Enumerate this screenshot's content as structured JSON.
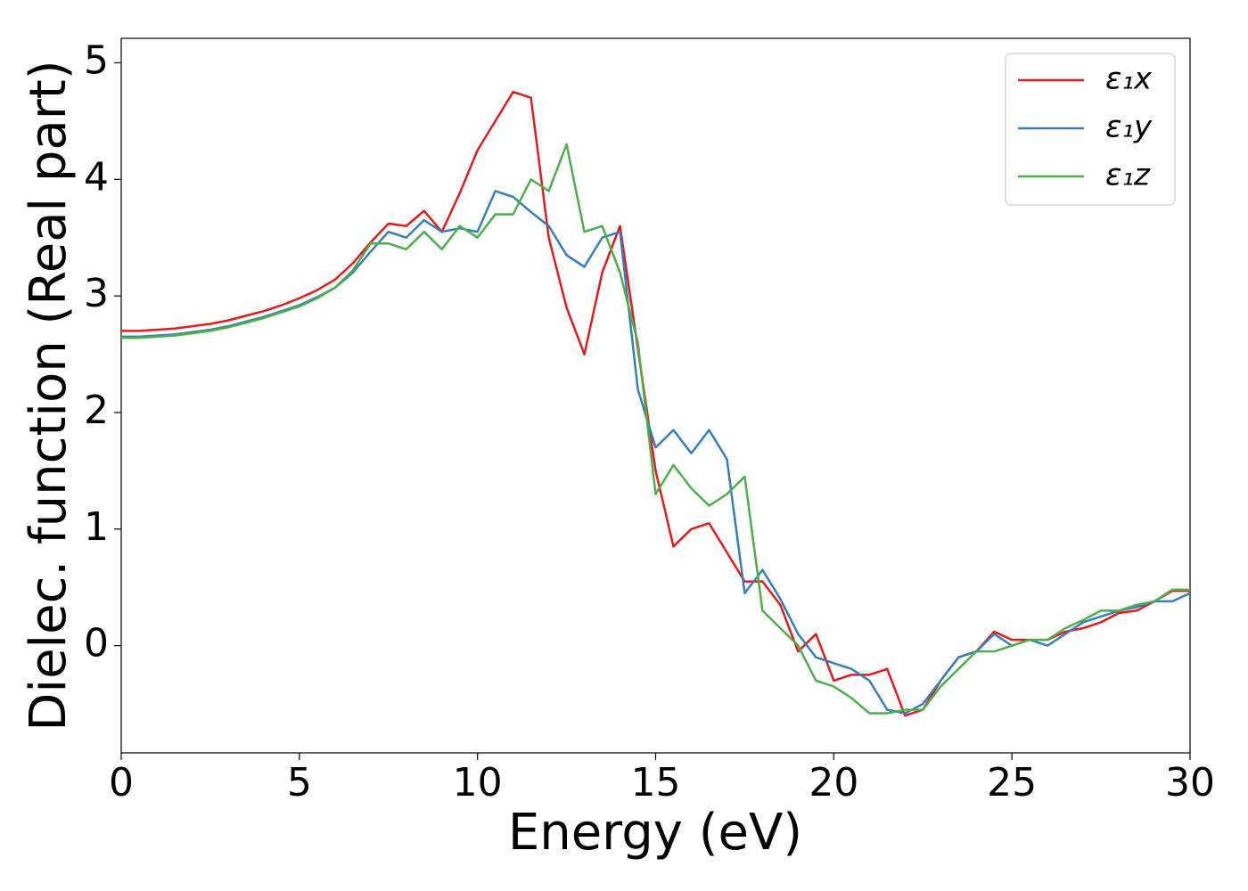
{
  "chart_data": {
    "type": "line",
    "xlabel": "Energy (eV)",
    "ylabel": "Dielec. function (Real part)",
    "x": [
      0,
      0.5,
      1,
      1.5,
      2,
      2.5,
      3,
      3.5,
      4,
      4.5,
      5,
      5.5,
      6,
      6.5,
      7,
      7.5,
      8,
      8.5,
      9,
      9.5,
      10,
      10.5,
      11,
      11.5,
      12,
      12.5,
      13,
      13.5,
      14,
      14.5,
      15,
      15.5,
      16,
      16.5,
      17,
      17.5,
      18,
      18.5,
      19,
      19.5,
      20,
      20.5,
      21,
      21.5,
      22,
      22.5,
      23,
      23.5,
      24,
      24.5,
      25,
      25.5,
      26,
      26.5,
      27,
      27.5,
      28,
      28.5,
      29,
      29.5,
      30
    ],
    "series": [
      {
        "name": "ε₁x",
        "color": "#e41a1c",
        "values": [
          2.7,
          2.7,
          2.71,
          2.72,
          2.74,
          2.76,
          2.79,
          2.83,
          2.87,
          2.92,
          2.98,
          3.05,
          3.14,
          3.28,
          3.46,
          3.62,
          3.6,
          3.73,
          3.55,
          3.88,
          4.25,
          4.5,
          4.75,
          4.7,
          3.5,
          2.9,
          2.5,
          3.2,
          3.6,
          2.55,
          1.5,
          0.85,
          1.0,
          1.05,
          0.8,
          0.55,
          0.55,
          0.35,
          -0.05,
          0.1,
          -0.3,
          -0.25,
          -0.25,
          -0.2,
          -0.6,
          -0.55,
          -0.3,
          -0.1,
          -0.05,
          0.12,
          0.05,
          0.05,
          0.05,
          0.12,
          0.15,
          0.2,
          0.28,
          0.3,
          0.38,
          0.47,
          0.47
        ]
      },
      {
        "name": "ε₁y",
        "color": "#377eb8",
        "values": [
          2.65,
          2.65,
          2.66,
          2.67,
          2.69,
          2.71,
          2.74,
          2.78,
          2.82,
          2.87,
          2.92,
          2.99,
          3.07,
          3.2,
          3.38,
          3.55,
          3.5,
          3.65,
          3.55,
          3.58,
          3.55,
          3.9,
          3.85,
          3.72,
          3.6,
          3.35,
          3.25,
          3.5,
          3.55,
          2.2,
          1.7,
          1.85,
          1.65,
          1.85,
          1.6,
          0.45,
          0.65,
          0.4,
          0.1,
          -0.1,
          -0.15,
          -0.2,
          -0.3,
          -0.55,
          -0.58,
          -0.5,
          -0.3,
          -0.1,
          -0.05,
          0.1,
          0.0,
          0.05,
          0.0,
          0.1,
          0.2,
          0.25,
          0.3,
          0.33,
          0.38,
          0.38,
          0.45
        ]
      },
      {
        "name": "ε₁z",
        "color": "#4daf4a",
        "values": [
          2.64,
          2.64,
          2.65,
          2.66,
          2.68,
          2.7,
          2.73,
          2.77,
          2.81,
          2.86,
          2.91,
          2.98,
          3.07,
          3.22,
          3.45,
          3.45,
          3.4,
          3.55,
          3.4,
          3.6,
          3.5,
          3.7,
          3.7,
          4.0,
          3.9,
          4.3,
          3.55,
          3.6,
          3.2,
          2.6,
          1.3,
          1.55,
          1.35,
          1.2,
          1.3,
          1.45,
          0.3,
          0.15,
          0.0,
          -0.3,
          -0.35,
          -0.45,
          -0.58,
          -0.58,
          -0.55,
          -0.55,
          -0.35,
          -0.2,
          -0.05,
          -0.05,
          0.0,
          0.05,
          0.05,
          0.15,
          0.22,
          0.3,
          0.3,
          0.35,
          0.38,
          0.48,
          0.48
        ]
      }
    ],
    "xlim": [
      0,
      30
    ],
    "xticks": [
      0,
      5,
      10,
      15,
      20,
      25,
      30
    ],
    "ylim": [
      -0.92,
      5.21
    ],
    "yticks": [
      0,
      1,
      2,
      3,
      4,
      5
    ],
    "legend": "upper right",
    "grid": false
  }
}
